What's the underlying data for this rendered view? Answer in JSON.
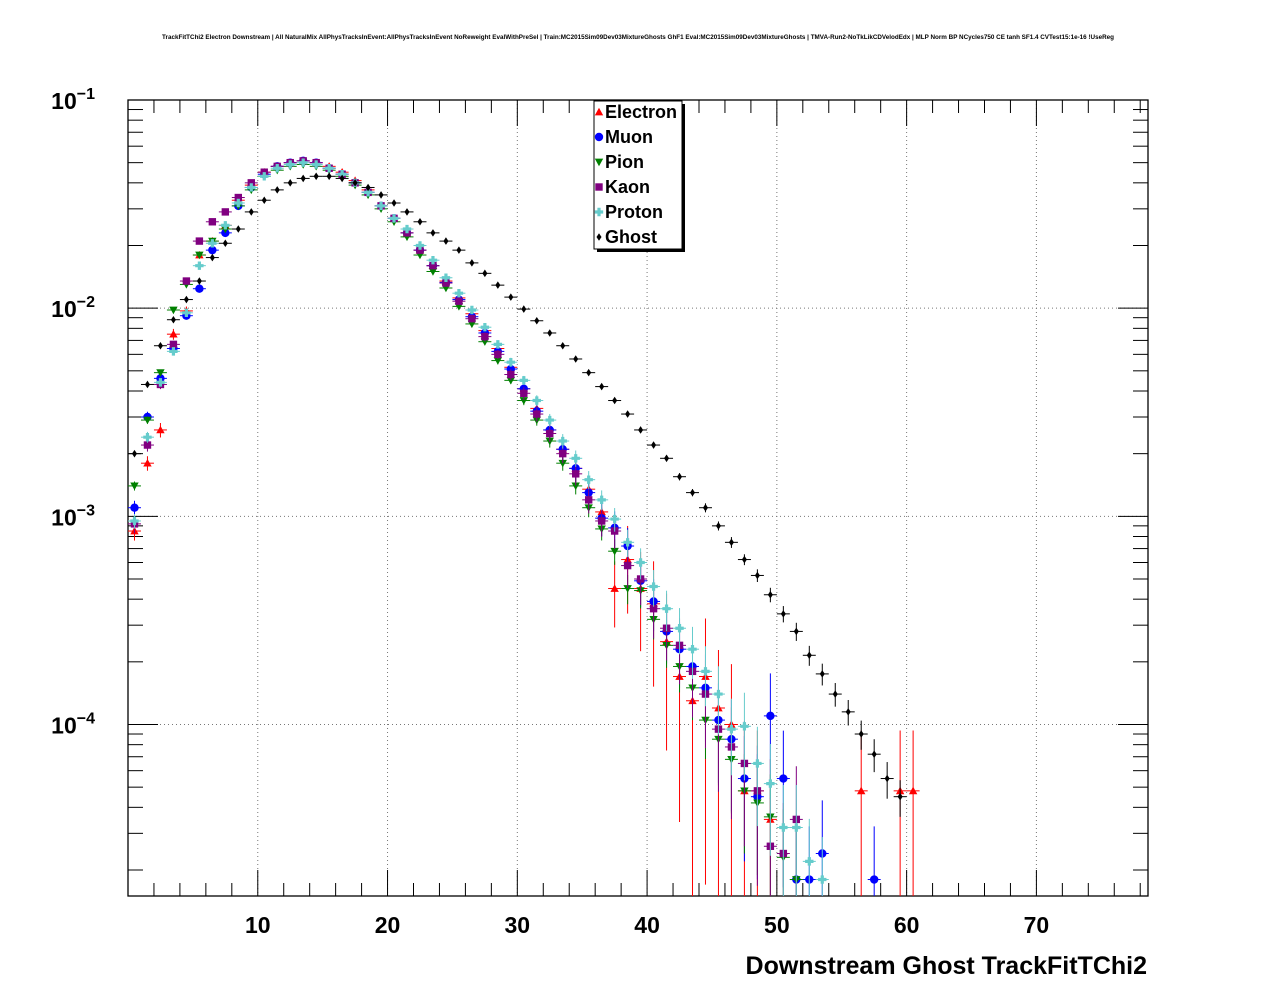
{
  "chart_data": {
    "type": "scatter",
    "title": "TrackFitTChi2 Electron Downstream | All NaturalMix AllPhysTracksInEvent:AllPhysTracksInEvent NoReweight EvalWithPreSel | Train:MC2015Sim09Dev03MixtureGhosts GhF1 Eval:MC2015Sim09Dev03MixtureGhosts | TMVA-Run2-NoTkLikCDVelodEdx | MLP Norm BP NCycles750 CE tanh SF1.4 CVTest15:1e-16 !UseReg",
    "xlabel": "Downstream Ghost TrackFitTChi2",
    "ylabel": "",
    "xlim": [
      0,
      78.6
    ],
    "ylim": [
      1.5e-05,
      0.1
    ],
    "yscale": "log",
    "grid": true,
    "legend_position": "top-center",
    "x_ticks": [
      "10",
      "20",
      "30",
      "40",
      "50",
      "60",
      "70"
    ],
    "y_ticks": [
      {
        "base": "10",
        "exp": "−1"
      },
      {
        "base": "10",
        "exp": "−2"
      },
      {
        "base": "10",
        "exp": "−3"
      },
      {
        "base": "10",
        "exp": "−4"
      }
    ],
    "series": [
      {
        "name": "Electron",
        "color": "#ff0000",
        "marker": "triangle-up",
        "x": [
          0.5,
          1.5,
          2.5,
          3.5,
          4.5,
          5.5,
          6.5,
          7.5,
          8.5,
          9.5,
          10.5,
          11.5,
          12.5,
          13.5,
          14.5,
          15.5,
          16.5,
          17.5,
          18.5,
          19.5,
          20.5,
          21.5,
          22.5,
          23.5,
          24.5,
          25.5,
          26.5,
          27.5,
          28.5,
          29.5,
          30.5,
          31.5,
          32.5,
          33.5,
          34.5,
          35.5,
          36.5,
          37.5,
          38.5,
          39.5,
          40.5,
          41.5,
          42.5,
          43.5,
          44.5,
          45.5,
          46.5,
          47.5,
          48.5,
          49.5,
          56.5,
          59.5,
          60.5
        ],
        "y": [
          0.00085,
          0.0018,
          0.0026,
          0.0075,
          0.0097,
          0.018,
          0.021,
          0.025,
          0.033,
          0.039,
          0.045,
          0.048,
          0.05,
          0.051,
          0.05,
          0.048,
          0.045,
          0.041,
          0.037,
          0.031,
          0.027,
          0.023,
          0.019,
          0.016,
          0.0135,
          0.0112,
          0.0094,
          0.0078,
          0.0064,
          0.0052,
          0.0041,
          0.0033,
          0.0026,
          0.0021,
          0.0017,
          0.00135,
          0.00105,
          0.00045,
          0.00062,
          0.00045,
          0.00038,
          0.00025,
          0.00017,
          0.00013,
          0.00017,
          0.00012,
          0.0001,
          4.8e-05,
          4.8e-05,
          3.5e-05,
          4.8e-05,
          4.8e-05,
          4.8e-05
        ],
        "yerr_rel": [
          0.1,
          0.08,
          0.08,
          0.06,
          0.05,
          0.03,
          0.03,
          0.03,
          0.02,
          0.02,
          0.02,
          0.02,
          0.02,
          0.02,
          0.02,
          0.02,
          0.02,
          0.02,
          0.02,
          0.02,
          0.02,
          0.02,
          0.03,
          0.03,
          0.03,
          0.04,
          0.05,
          0.05,
          0.06,
          0.07,
          0.08,
          0.09,
          0.1,
          0.12,
          0.14,
          0.16,
          0.2,
          0.35,
          0.45,
          0.5,
          0.6,
          0.7,
          0.8,
          0.9,
          0.9,
          0.9,
          0.95,
          0.95,
          0.95,
          0.95,
          0.95,
          0.95,
          0.95
        ]
      },
      {
        "name": "Muon",
        "color": "#0000ff",
        "marker": "circle",
        "x": [
          0.5,
          1.5,
          2.5,
          3.5,
          4.5,
          5.5,
          6.5,
          7.5,
          8.5,
          9.5,
          10.5,
          11.5,
          12.5,
          13.5,
          14.5,
          15.5,
          16.5,
          17.5,
          18.5,
          19.5,
          20.5,
          21.5,
          22.5,
          23.5,
          24.5,
          25.5,
          26.5,
          27.5,
          28.5,
          29.5,
          30.5,
          31.5,
          32.5,
          33.5,
          34.5,
          35.5,
          36.5,
          37.5,
          38.5,
          39.5,
          40.5,
          41.5,
          42.5,
          43.5,
          44.5,
          45.5,
          46.5,
          47.5,
          48.5,
          49.5,
          50.5,
          51.5,
          52.5,
          53.5,
          57.5
        ],
        "y": [
          0.0011,
          0.003,
          0.0046,
          0.0064,
          0.0092,
          0.0124,
          0.019,
          0.023,
          0.031,
          0.038,
          0.044,
          0.048,
          0.05,
          0.051,
          0.05,
          0.047,
          0.044,
          0.04,
          0.036,
          0.031,
          0.027,
          0.023,
          0.019,
          0.016,
          0.0133,
          0.011,
          0.0091,
          0.0076,
          0.0062,
          0.0051,
          0.0041,
          0.0032,
          0.0026,
          0.0021,
          0.0017,
          0.0013,
          0.00098,
          0.00088,
          0.00072,
          0.00049,
          0.00039,
          0.00028,
          0.00023,
          0.00019,
          0.00015,
          0.000105,
          8.5e-05,
          5.5e-05,
          4.5e-05,
          0.00011,
          5.5e-05,
          1.8e-05,
          1.8e-05,
          2.4e-05,
          1.8e-05
        ],
        "yerr_rel": [
          0.08,
          0.06,
          0.05,
          0.04,
          0.03,
          0.03,
          0.02,
          0.02,
          0.02,
          0.02,
          0.02,
          0.02,
          0.02,
          0.02,
          0.02,
          0.02,
          0.02,
          0.02,
          0.02,
          0.02,
          0.02,
          0.02,
          0.03,
          0.03,
          0.03,
          0.04,
          0.05,
          0.05,
          0.06,
          0.07,
          0.08,
          0.09,
          0.1,
          0.12,
          0.14,
          0.16,
          0.18,
          0.2,
          0.22,
          0.25,
          0.28,
          0.3,
          0.35,
          0.4,
          0.45,
          0.5,
          0.55,
          0.6,
          0.6,
          0.6,
          0.7,
          0.8,
          0.8,
          0.8,
          0.8
        ]
      },
      {
        "name": "Pion",
        "color": "#008000",
        "marker": "triangle-down",
        "x": [
          0.5,
          1.5,
          2.5,
          3.5,
          4.5,
          5.5,
          6.5,
          7.5,
          8.5,
          9.5,
          10.5,
          11.5,
          12.5,
          13.5,
          14.5,
          15.5,
          16.5,
          17.5,
          18.5,
          19.5,
          20.5,
          21.5,
          22.5,
          23.5,
          24.5,
          25.5,
          26.5,
          27.5,
          28.5,
          29.5,
          30.5,
          31.5,
          32.5,
          33.5,
          34.5,
          35.5,
          36.5,
          37.5,
          38.5,
          39.5,
          40.5,
          41.5,
          42.5,
          43.5,
          44.5,
          45.5,
          46.5,
          47.5,
          48.5,
          49.5,
          50.5,
          51.5
        ],
        "y": [
          0.0014,
          0.0029,
          0.0049,
          0.0098,
          0.013,
          0.018,
          0.021,
          0.024,
          0.031,
          0.037,
          0.043,
          0.046,
          0.048,
          0.049,
          0.048,
          0.046,
          0.043,
          0.039,
          0.035,
          0.03,
          0.026,
          0.022,
          0.018,
          0.015,
          0.0125,
          0.0102,
          0.0084,
          0.0069,
          0.0056,
          0.0045,
          0.0036,
          0.0029,
          0.0023,
          0.0018,
          0.0014,
          0.0011,
          0.00087,
          0.00068,
          0.00045,
          0.00044,
          0.00032,
          0.00024,
          0.00019,
          0.00015,
          0.000105,
          8.5e-05,
          6.8e-05,
          4.8e-05,
          4.2e-05,
          3.6e-05,
          2.3e-05,
          1.8e-05
        ],
        "yerr_rel": [
          0.05,
          0.04,
          0.03,
          0.02,
          0.02,
          0.02,
          0.01,
          0.01,
          0.01,
          0.01,
          0.01,
          0.01,
          0.01,
          0.01,
          0.01,
          0.01,
          0.01,
          0.01,
          0.01,
          0.01,
          0.01,
          0.01,
          0.02,
          0.02,
          0.02,
          0.02,
          0.03,
          0.03,
          0.04,
          0.04,
          0.05,
          0.06,
          0.07,
          0.08,
          0.09,
          0.1,
          0.12,
          0.14,
          0.16,
          0.18,
          0.2,
          0.22,
          0.25,
          0.3,
          0.35,
          0.4,
          0.45,
          0.5,
          0.55,
          0.6,
          0.7,
          0.7
        ]
      },
      {
        "name": "Kaon",
        "color": "#800080",
        "marker": "square",
        "x": [
          0.5,
          1.5,
          2.5,
          3.5,
          4.5,
          5.5,
          6.5,
          7.5,
          8.5,
          9.5,
          10.5,
          11.5,
          12.5,
          13.5,
          14.5,
          15.5,
          16.5,
          17.5,
          18.5,
          19.5,
          20.5,
          21.5,
          22.5,
          23.5,
          24.5,
          25.5,
          26.5,
          27.5,
          28.5,
          29.5,
          30.5,
          31.5,
          32.5,
          33.5,
          34.5,
          35.5,
          36.5,
          37.5,
          38.5,
          39.5,
          40.5,
          41.5,
          42.5,
          43.5,
          44.5,
          45.5,
          46.5,
          47.5,
          48.5,
          49.5,
          50.5,
          51.5
        ],
        "y": [
          0.00092,
          0.0022,
          0.0043,
          0.0067,
          0.0135,
          0.021,
          0.026,
          0.029,
          0.034,
          0.04,
          0.045,
          0.048,
          0.05,
          0.051,
          0.05,
          0.047,
          0.044,
          0.04,
          0.036,
          0.031,
          0.027,
          0.023,
          0.019,
          0.016,
          0.0132,
          0.0108,
          0.0089,
          0.0073,
          0.006,
          0.0048,
          0.0039,
          0.0031,
          0.0025,
          0.002,
          0.0016,
          0.0012,
          0.00095,
          0.00085,
          0.00058,
          0.0005,
          0.00036,
          0.00029,
          0.00024,
          0.00018,
          0.00014,
          9.5e-05,
          7.8e-05,
          6.5e-05,
          4.8e-05,
          2.6e-05,
          2.4e-05,
          3.5e-05
        ],
        "yerr_rel": [
          0.1,
          0.07,
          0.05,
          0.04,
          0.03,
          0.02,
          0.02,
          0.02,
          0.02,
          0.02,
          0.02,
          0.02,
          0.02,
          0.02,
          0.02,
          0.02,
          0.02,
          0.02,
          0.02,
          0.02,
          0.02,
          0.02,
          0.03,
          0.03,
          0.03,
          0.03,
          0.04,
          0.05,
          0.05,
          0.06,
          0.07,
          0.08,
          0.09,
          0.1,
          0.12,
          0.14,
          0.16,
          0.18,
          0.22,
          0.25,
          0.28,
          0.3,
          0.35,
          0.4,
          0.45,
          0.5,
          0.55,
          0.6,
          0.65,
          0.7,
          0.75,
          0.8
        ]
      },
      {
        "name": "Proton",
        "color": "#66cccc",
        "marker": "cross",
        "x": [
          0.5,
          1.5,
          2.5,
          3.5,
          4.5,
          5.5,
          6.5,
          7.5,
          8.5,
          9.5,
          10.5,
          11.5,
          12.5,
          13.5,
          14.5,
          15.5,
          16.5,
          17.5,
          18.5,
          19.5,
          20.5,
          21.5,
          22.5,
          23.5,
          24.5,
          25.5,
          26.5,
          27.5,
          28.5,
          29.5,
          30.5,
          31.5,
          32.5,
          33.5,
          34.5,
          35.5,
          36.5,
          37.5,
          38.5,
          39.5,
          40.5,
          41.5,
          42.5,
          43.5,
          44.5,
          45.5,
          46.5,
          47.5,
          48.5,
          49.5,
          50.5,
          51.5,
          52.5,
          53.5
        ],
        "y": [
          0.00095,
          0.0024,
          0.0044,
          0.0062,
          0.0095,
          0.016,
          0.0205,
          0.025,
          0.032,
          0.038,
          0.043,
          0.047,
          0.049,
          0.05,
          0.049,
          0.047,
          0.044,
          0.04,
          0.036,
          0.031,
          0.027,
          0.024,
          0.02,
          0.017,
          0.014,
          0.0118,
          0.0098,
          0.0081,
          0.0067,
          0.0055,
          0.0045,
          0.0036,
          0.0029,
          0.0023,
          0.0019,
          0.0015,
          0.0012,
          0.00097,
          0.00075,
          0.0006,
          0.00046,
          0.00036,
          0.00029,
          0.00023,
          0.00018,
          0.00014,
          9.5e-05,
          9.8e-05,
          6.5e-05,
          5.2e-05,
          3.2e-05,
          3.2e-05,
          2.2e-05,
          1.8e-05
        ],
        "yerr_rel": [
          0.08,
          0.06,
          0.04,
          0.03,
          0.03,
          0.02,
          0.02,
          0.02,
          0.02,
          0.02,
          0.02,
          0.02,
          0.02,
          0.02,
          0.02,
          0.02,
          0.02,
          0.02,
          0.02,
          0.02,
          0.02,
          0.02,
          0.02,
          0.03,
          0.03,
          0.03,
          0.03,
          0.04,
          0.04,
          0.05,
          0.05,
          0.06,
          0.07,
          0.08,
          0.09,
          0.1,
          0.11,
          0.13,
          0.15,
          0.17,
          0.2,
          0.22,
          0.25,
          0.28,
          0.32,
          0.36,
          0.4,
          0.45,
          0.5,
          0.55,
          0.6,
          0.6,
          0.6,
          0.6
        ]
      },
      {
        "name": "Ghost",
        "color": "#000000",
        "marker": "diamond",
        "x": [
          0.5,
          1.5,
          2.5,
          3.5,
          4.5,
          5.5,
          6.5,
          7.5,
          8.5,
          9.5,
          10.5,
          11.5,
          12.5,
          13.5,
          14.5,
          15.5,
          16.5,
          17.5,
          18.5,
          19.5,
          20.5,
          21.5,
          22.5,
          23.5,
          24.5,
          25.5,
          26.5,
          27.5,
          28.5,
          29.5,
          30.5,
          31.5,
          32.5,
          33.5,
          34.5,
          35.5,
          36.5,
          37.5,
          38.5,
          39.5,
          40.5,
          41.5,
          42.5,
          43.5,
          44.5,
          45.5,
          46.5,
          47.5,
          48.5,
          49.5,
          50.5,
          51.5,
          52.5,
          53.5,
          54.5,
          55.5,
          56.5,
          57.5,
          58.5,
          59.5
        ],
        "y": [
          0.002,
          0.0043,
          0.0066,
          0.0088,
          0.011,
          0.0135,
          0.0175,
          0.0205,
          0.024,
          0.029,
          0.033,
          0.037,
          0.04,
          0.042,
          0.043,
          0.043,
          0.042,
          0.04,
          0.038,
          0.035,
          0.032,
          0.029,
          0.026,
          0.023,
          0.021,
          0.019,
          0.0165,
          0.0147,
          0.0129,
          0.0113,
          0.0099,
          0.0087,
          0.0076,
          0.0066,
          0.0057,
          0.0049,
          0.0042,
          0.0036,
          0.0031,
          0.0026,
          0.0022,
          0.0019,
          0.00155,
          0.0013,
          0.0011,
          0.0009,
          0.00075,
          0.00062,
          0.00052,
          0.00042,
          0.00034,
          0.00028,
          0.000215,
          0.000175,
          0.00014,
          0.000115,
          9e-05,
          7.2e-05,
          5.5e-05,
          4.5e-05
        ],
        "yerr_rel": [
          0.02,
          0.02,
          0.01,
          0.01,
          0.01,
          0.01,
          0.01,
          0.01,
          0.01,
          0.01,
          0.01,
          0.01,
          0.01,
          0.01,
          0.01,
          0.01,
          0.01,
          0.01,
          0.01,
          0.01,
          0.01,
          0.01,
          0.01,
          0.01,
          0.01,
          0.01,
          0.01,
          0.01,
          0.01,
          0.01,
          0.01,
          0.01,
          0.02,
          0.02,
          0.02,
          0.02,
          0.02,
          0.02,
          0.03,
          0.03,
          0.03,
          0.03,
          0.04,
          0.04,
          0.05,
          0.05,
          0.06,
          0.06,
          0.07,
          0.08,
          0.09,
          0.1,
          0.11,
          0.12,
          0.13,
          0.14,
          0.16,
          0.18,
          0.2,
          0.2
        ]
      }
    ]
  }
}
